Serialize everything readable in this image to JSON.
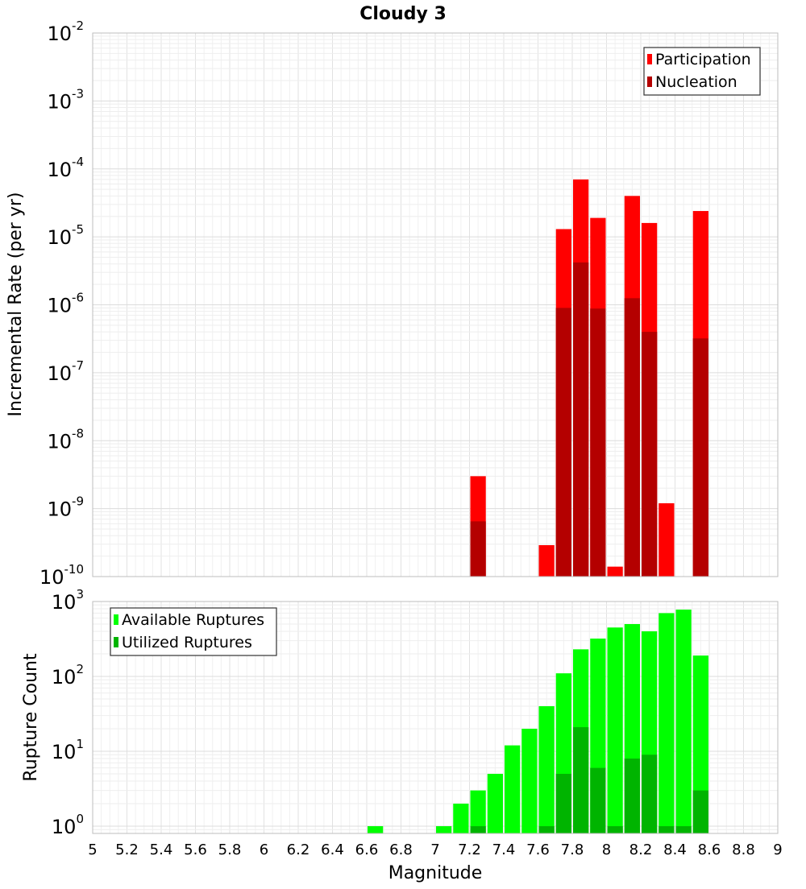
{
  "chart_data": [
    {
      "type": "bar",
      "title": "Cloudy 3",
      "ylabel": "Incremental Rate (per yr)",
      "yscale": "log",
      "ylim": [
        1e-10,
        0.01
      ],
      "xlim": [
        5,
        9
      ],
      "bar_width": 0.1,
      "y_ticks": [
        {
          "base": "10",
          "exp": "-10",
          "value": 1e-10
        },
        {
          "base": "10",
          "exp": "-9",
          "value": 1e-09
        },
        {
          "base": "10",
          "exp": "-8",
          "value": 1e-08
        },
        {
          "base": "10",
          "exp": "-7",
          "value": 1e-07
        },
        {
          "base": "10",
          "exp": "-6",
          "value": 1e-06
        },
        {
          "base": "10",
          "exp": "-5",
          "value": 1e-05
        },
        {
          "base": "10",
          "exp": "-4",
          "value": 0.0001
        },
        {
          "base": "10",
          "exp": "-3",
          "value": 0.001
        },
        {
          "base": "10",
          "exp": "-2",
          "value": 0.01
        }
      ],
      "legend_position": "top-right",
      "series": [
        {
          "name": "Participation",
          "color": "#ff0000",
          "points": [
            {
              "x": 7.25,
              "y": 3e-09
            },
            {
              "x": 7.65,
              "y": 2.9e-10
            },
            {
              "x": 7.75,
              "y": 1.3e-05
            },
            {
              "x": 7.85,
              "y": 7e-05
            },
            {
              "x": 7.95,
              "y": 1.9e-05
            },
            {
              "x": 8.05,
              "y": 1.4e-10
            },
            {
              "x": 8.15,
              "y": 4e-05
            },
            {
              "x": 8.25,
              "y": 1.6e-05
            },
            {
              "x": 8.35,
              "y": 1.2e-09
            },
            {
              "x": 8.55,
              "y": 2.4e-05
            }
          ]
        },
        {
          "name": "Nucleation",
          "color": "#b40000",
          "points": [
            {
              "x": 7.25,
              "y": 6.5e-10
            },
            {
              "x": 7.75,
              "y": 9e-07
            },
            {
              "x": 7.85,
              "y": 4.2e-06
            },
            {
              "x": 7.95,
              "y": 8.8e-07
            },
            {
              "x": 8.15,
              "y": 1.25e-06
            },
            {
              "x": 8.25,
              "y": 4e-07
            },
            {
              "x": 8.55,
              "y": 3.2e-07
            }
          ]
        }
      ]
    },
    {
      "type": "bar",
      "xlabel": "Magnitude",
      "ylabel": "Rupture Count",
      "yscale": "log",
      "ylim": [
        0.8,
        1000
      ],
      "xlim": [
        5,
        9
      ],
      "bar_width": 0.1,
      "x_ticks": [
        "5",
        "5.2",
        "5.4",
        "5.6",
        "5.8",
        "6",
        "6.2",
        "6.4",
        "6.6",
        "6.8",
        "7",
        "7.2",
        "7.4",
        "7.6",
        "7.8",
        "8",
        "8.2",
        "8.4",
        "8.6",
        "8.8",
        "9"
      ],
      "y_ticks": [
        {
          "base": "10",
          "exp": "0",
          "value": 1
        },
        {
          "base": "10",
          "exp": "1",
          "value": 10
        },
        {
          "base": "10",
          "exp": "2",
          "value": 100
        },
        {
          "base": "10",
          "exp": "3",
          "value": 1000
        }
      ],
      "legend_position": "top-left",
      "series": [
        {
          "name": "Available Ruptures",
          "color": "#00ff00",
          "points": [
            {
              "x": 6.65,
              "y": 1
            },
            {
              "x": 7.05,
              "y": 1
            },
            {
              "x": 7.15,
              "y": 2
            },
            {
              "x": 7.25,
              "y": 3
            },
            {
              "x": 7.35,
              "y": 5
            },
            {
              "x": 7.45,
              "y": 12
            },
            {
              "x": 7.55,
              "y": 20
            },
            {
              "x": 7.65,
              "y": 40
            },
            {
              "x": 7.75,
              "y": 110
            },
            {
              "x": 7.85,
              "y": 230
            },
            {
              "x": 7.95,
              "y": 320
            },
            {
              "x": 8.05,
              "y": 450
            },
            {
              "x": 8.15,
              "y": 500
            },
            {
              "x": 8.25,
              "y": 400
            },
            {
              "x": 8.35,
              "y": 700
            },
            {
              "x": 8.45,
              "y": 780
            },
            {
              "x": 8.55,
              "y": 190
            }
          ]
        },
        {
          "name": "Utilized Ruptures",
          "color": "#00b400",
          "points": [
            {
              "x": 7.25,
              "y": 1
            },
            {
              "x": 7.65,
              "y": 1
            },
            {
              "x": 7.75,
              "y": 5
            },
            {
              "x": 7.85,
              "y": 21
            },
            {
              "x": 7.95,
              "y": 6
            },
            {
              "x": 8.05,
              "y": 1
            },
            {
              "x": 8.15,
              "y": 8
            },
            {
              "x": 8.25,
              "y": 9
            },
            {
              "x": 8.35,
              "y": 1
            },
            {
              "x": 8.45,
              "y": 1
            },
            {
              "x": 8.55,
              "y": 3
            }
          ]
        }
      ]
    }
  ]
}
